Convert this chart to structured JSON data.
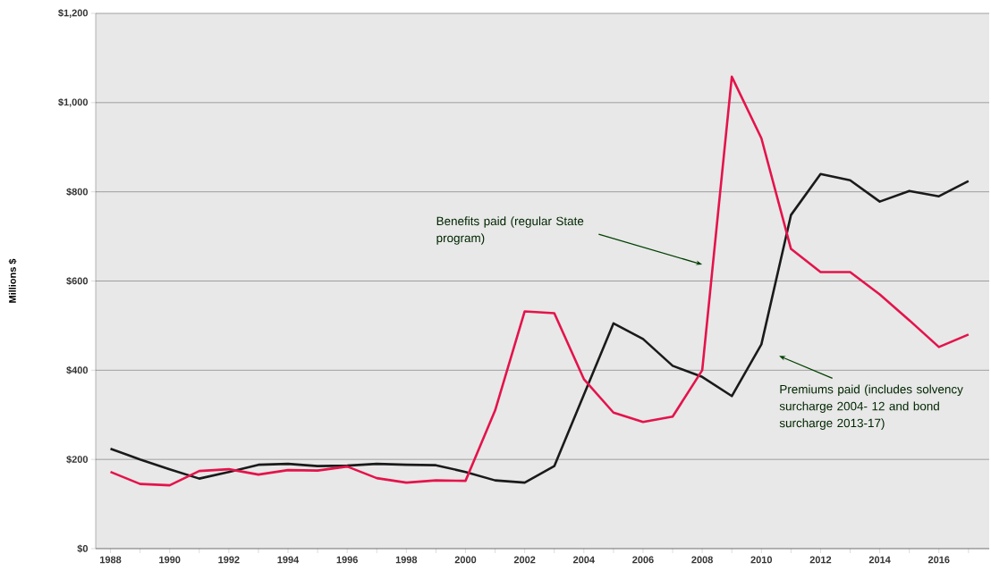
{
  "chart_data": {
    "type": "line",
    "ylabel": "Millions $",
    "x": [
      1988,
      1989,
      1990,
      1991,
      1992,
      1993,
      1994,
      1995,
      1996,
      1997,
      1998,
      1999,
      2000,
      2001,
      2002,
      2003,
      2004,
      2005,
      2006,
      2007,
      2008,
      2009,
      2010,
      2011,
      2012,
      2013,
      2014,
      2015,
      2016,
      2017
    ],
    "series": [
      {
        "color": "#1a1a1a",
        "values": [
          224,
          200,
          178,
          157,
          172,
          188,
          190,
          185,
          186,
          190,
          188,
          187,
          172,
          153,
          148,
          185,
          345,
          505,
          470,
          410,
          385,
          342,
          458,
          748,
          840,
          826,
          778,
          802,
          790,
          824
        ]
      },
      {
        "color": "#e4134b",
        "values": [
          172,
          145,
          142,
          174,
          178,
          166,
          176,
          175,
          184,
          158,
          148,
          153,
          152,
          310,
          532,
          528,
          380,
          305,
          284,
          296,
          400,
          1058,
          920,
          672,
          620,
          620,
          570,
          512,
          452,
          480
        ]
      }
    ],
    "xlim": [
      1987.5,
      2017.7
    ],
    "xticks": [
      1988,
      {
        "value": 1989,
        "label": null
      },
      1990,
      {
        "value": 1991,
        "label": null
      },
      1992,
      {
        "value": 1993,
        "label": null
      },
      1994,
      {
        "value": 1995,
        "label": null
      },
      1996,
      {
        "value": 1997,
        "label": null
      },
      1998,
      {
        "value": 1999,
        "label": null
      },
      2000,
      {
        "value": 2001,
        "label": null
      },
      2002,
      {
        "value": 2003,
        "label": null
      },
      2004,
      {
        "value": 2005,
        "label": null
      },
      2006,
      {
        "value": 2007,
        "label": null
      },
      2008,
      {
        "value": 2009,
        "label": null
      },
      2010,
      {
        "value": 2011,
        "label": null
      },
      2012,
      {
        "value": 2013,
        "label": null
      },
      2014,
      {
        "value": 2015,
        "label": null
      },
      2016,
      {
        "value": 2017,
        "label": null
      }
    ],
    "ylim": [
      0,
      1200
    ],
    "yticks": [
      {
        "value": 0,
        "label": "$0"
      },
      {
        "value": 200,
        "label": "$200"
      },
      {
        "value": 400,
        "label": "$400"
      },
      {
        "value": 600,
        "label": "$600"
      },
      {
        "value": 800,
        "label": "$800"
      },
      {
        "value": 1000,
        "label": "$1,000"
      },
      {
        "value": 1200,
        "label": "$1,200"
      }
    ],
    "grid": "y",
    "line_style": "solid",
    "annotations": [
      "Benefits paid (regular State program)",
      "Premiums paid (includes solvency surcharge 2004- 12 and bond surcharge 2013-17)"
    ]
  }
}
